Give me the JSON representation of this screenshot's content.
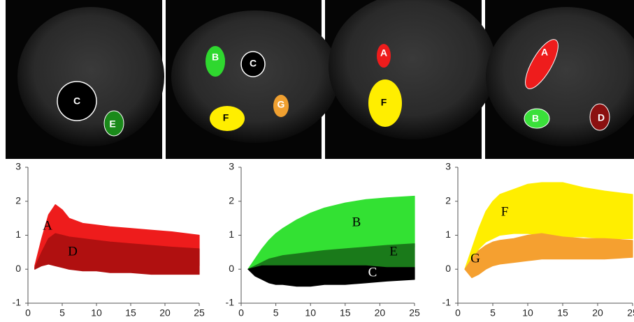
{
  "images": [
    {
      "labels": [
        "C",
        "E"
      ]
    },
    {
      "labels": [
        "B",
        "C",
        "F",
        "G"
      ]
    },
    {
      "labels": [
        "A",
        "F"
      ]
    },
    {
      "labels": [
        "A",
        "B",
        "D"
      ]
    }
  ],
  "chart_data": [
    {
      "type": "band",
      "x": [
        1,
        2,
        3,
        4,
        5,
        6,
        8,
        10,
        12,
        15,
        18,
        21,
        25
      ],
      "xlim": [
        0,
        25
      ],
      "ylim": [
        -1,
        3
      ],
      "xticks": [
        0,
        5,
        10,
        15,
        20,
        25
      ],
      "yticks": [
        -1,
        0,
        1,
        2,
        3
      ],
      "series": [
        {
          "name": "A",
          "color": "#ee1c1c",
          "high": [
            0.1,
            0.9,
            1.6,
            1.9,
            1.75,
            1.5,
            1.35,
            1.3,
            1.25,
            1.2,
            1.15,
            1.1,
            1.0
          ],
          "low": [
            0,
            0.3,
            0.6,
            0.7,
            0.6,
            0.5,
            0.4,
            0.35,
            0.3,
            0.25,
            0.2,
            0.15,
            0.1
          ]
        },
        {
          "name": "D",
          "color": "#b01010",
          "high": [
            0.05,
            0.5,
            0.9,
            1.05,
            1.0,
            0.95,
            0.9,
            0.85,
            0.8,
            0.75,
            0.7,
            0.65,
            0.6
          ],
          "low": [
            0,
            0.1,
            0.15,
            0.1,
            0.05,
            0,
            -0.05,
            -0.05,
            -0.1,
            -0.1,
            -0.15,
            -0.15,
            -0.15
          ]
        }
      ]
    },
    {
      "type": "band",
      "x": [
        1,
        2,
        3,
        4,
        5,
        6,
        8,
        10,
        12,
        15,
        18,
        21,
        25
      ],
      "xlim": [
        0,
        25
      ],
      "ylim": [
        -1,
        3
      ],
      "xticks": [
        0,
        5,
        10,
        15,
        20,
        25
      ],
      "yticks": [
        -1,
        0,
        1,
        2,
        3
      ],
      "series": [
        {
          "name": "B",
          "color": "#33e133",
          "high": [
            0,
            0.3,
            0.6,
            0.85,
            1.05,
            1.2,
            1.45,
            1.65,
            1.8,
            1.95,
            2.05,
            2.1,
            2.15
          ],
          "low": [
            0,
            0.1,
            0.2,
            0.3,
            0.35,
            0.4,
            0.45,
            0.5,
            0.55,
            0.6,
            0.6,
            0.65,
            0.65
          ]
        },
        {
          "name": "E",
          "color": "#1a7a1a",
          "high": [
            0,
            0.1,
            0.2,
            0.3,
            0.35,
            0.4,
            0.45,
            0.5,
            0.55,
            0.6,
            0.65,
            0.7,
            0.75
          ],
          "low": [
            0,
            -0.05,
            -0.05,
            0,
            0,
            0,
            0,
            0.05,
            0.05,
            0.05,
            0.05,
            0.05,
            0.05
          ]
        },
        {
          "name": "C",
          "color": "#000000",
          "high": [
            0,
            0.05,
            0.1,
            0.1,
            0.1,
            0.1,
            0.1,
            0.1,
            0.1,
            0.1,
            0.1,
            0.05,
            0.05
          ],
          "low": [
            0,
            -0.2,
            -0.3,
            -0.4,
            -0.45,
            -0.45,
            -0.5,
            -0.5,
            -0.45,
            -0.45,
            -0.4,
            -0.35,
            -0.3
          ]
        }
      ]
    },
    {
      "type": "band",
      "x": [
        1,
        2,
        3,
        4,
        5,
        6,
        8,
        10,
        12,
        15,
        18,
        21,
        25
      ],
      "xlim": [
        0,
        25
      ],
      "ylim": [
        -1,
        3
      ],
      "xticks": [
        0,
        5,
        10,
        15,
        20,
        25
      ],
      "yticks": [
        -1,
        0,
        1,
        2,
        3
      ],
      "series": [
        {
          "name": "F",
          "color": "#ffee00",
          "high": [
            0,
            0.6,
            1.2,
            1.7,
            2.0,
            2.2,
            2.35,
            2.5,
            2.55,
            2.55,
            2.4,
            2.3,
            2.2
          ],
          "low": [
            0,
            0.3,
            0.6,
            0.8,
            0.9,
            1.0,
            1.05,
            1.05,
            1.0,
            0.95,
            0.95,
            0.9,
            0.9
          ]
        },
        {
          "name": "G",
          "color": "#f5a030",
          "high": [
            0,
            0.3,
            0.55,
            0.7,
            0.8,
            0.85,
            0.9,
            1.0,
            1.05,
            0.95,
            0.9,
            0.9,
            0.85
          ],
          "low": [
            0,
            -0.25,
            -0.15,
            0,
            0.1,
            0.15,
            0.2,
            0.25,
            0.3,
            0.3,
            0.3,
            0.3,
            0.35
          ]
        }
      ]
    }
  ]
}
